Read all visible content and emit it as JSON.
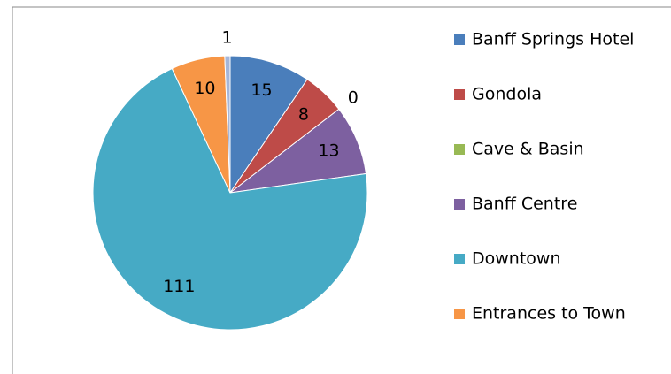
{
  "chart_data": {
    "type": "pie",
    "categories": [
      "Banff Springs Hotel",
      "Gondola",
      "Cave & Basin",
      "Banff Centre",
      "Downtown",
      "Entrances to Town",
      null
    ],
    "values": [
      15,
      8,
      0,
      13,
      111,
      10,
      1
    ],
    "colors": [
      "#4a7ebb",
      "#be4b48",
      "#98b954",
      "#7d60a0",
      "#46aac5",
      "#f79646",
      "#a5b6d9"
    ],
    "legend": "right"
  }
}
